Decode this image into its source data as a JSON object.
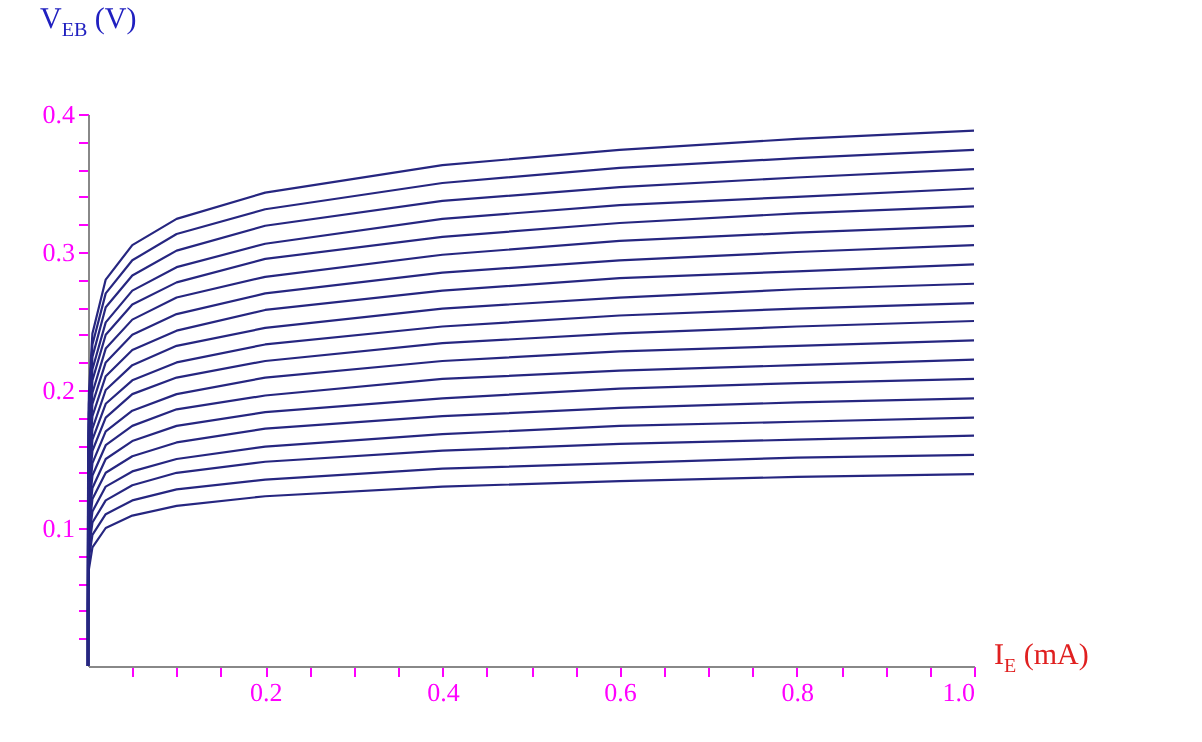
{
  "chart_data": {
    "type": "line",
    "xlabel": "I$_{E}$ (mA)",
    "ylabel": "V$_{EB}$ (V)",
    "x": [
      0,
      1e-05,
      0.0001,
      0.001,
      0.005,
      0.02,
      0.05,
      0.1,
      0.2,
      0.4,
      0.6,
      0.8,
      1.0
    ],
    "series": [
      {
        "color": "#262680",
        "values": [
          0,
          0.025,
          0.048,
          0.07,
          0.086,
          0.1,
          0.109,
          0.116,
          0.123,
          0.13,
          0.134,
          0.137,
          0.139
        ]
      },
      {
        "color": "#262680",
        "values": [
          0,
          0.028,
          0.052,
          0.078,
          0.095,
          0.11,
          0.12,
          0.128,
          0.135,
          0.143,
          0.147,
          0.151,
          0.153
        ]
      },
      {
        "color": "#262680",
        "values": [
          0,
          0.031,
          0.057,
          0.085,
          0.104,
          0.12,
          0.131,
          0.14,
          0.148,
          0.156,
          0.161,
          0.164,
          0.167
        ]
      },
      {
        "color": "#262680",
        "values": [
          0,
          0.033,
          0.062,
          0.091,
          0.112,
          0.13,
          0.141,
          0.15,
          0.159,
          0.168,
          0.174,
          0.177,
          0.18
        ]
      },
      {
        "color": "#262680",
        "values": [
          0,
          0.036,
          0.066,
          0.098,
          0.121,
          0.14,
          0.152,
          0.162,
          0.172,
          0.181,
          0.187,
          0.191,
          0.194
        ]
      },
      {
        "color": "#262680",
        "values": [
          0,
          0.038,
          0.071,
          0.105,
          0.129,
          0.15,
          0.163,
          0.174,
          0.184,
          0.194,
          0.201,
          0.205,
          0.208
        ]
      },
      {
        "color": "#262680",
        "values": [
          0,
          0.041,
          0.076,
          0.113,
          0.138,
          0.16,
          0.174,
          0.186,
          0.196,
          0.208,
          0.214,
          0.218,
          0.222
        ]
      },
      {
        "color": "#262680",
        "values": [
          0,
          0.043,
          0.081,
          0.12,
          0.147,
          0.17,
          0.185,
          0.197,
          0.209,
          0.221,
          0.228,
          0.232,
          0.236
        ]
      },
      {
        "color": "#262680",
        "values": [
          0,
          0.046,
          0.086,
          0.127,
          0.156,
          0.18,
          0.197,
          0.209,
          0.221,
          0.234,
          0.241,
          0.246,
          0.25
        ]
      },
      {
        "color": "#262680",
        "values": [
          0,
          0.048,
          0.09,
          0.133,
          0.164,
          0.19,
          0.207,
          0.22,
          0.233,
          0.246,
          0.254,
          0.259,
          0.263
        ]
      },
      {
        "color": "#262680",
        "values": [
          0,
          0.051,
          0.095,
          0.14,
          0.172,
          0.2,
          0.218,
          0.232,
          0.245,
          0.259,
          0.267,
          0.273,
          0.277
        ]
      },
      {
        "color": "#262680",
        "values": [
          0,
          0.053,
          0.1,
          0.148,
          0.181,
          0.21,
          0.229,
          0.243,
          0.258,
          0.272,
          0.281,
          0.286,
          0.291
        ]
      },
      {
        "color": "#262680",
        "values": [
          0,
          0.056,
          0.104,
          0.155,
          0.19,
          0.22,
          0.24,
          0.255,
          0.27,
          0.285,
          0.294,
          0.3,
          0.305
        ]
      },
      {
        "color": "#262680",
        "values": [
          0,
          0.058,
          0.109,
          0.162,
          0.198,
          0.23,
          0.251,
          0.267,
          0.282,
          0.298,
          0.308,
          0.314,
          0.319
        ]
      },
      {
        "color": "#262680",
        "values": [
          0,
          0.061,
          0.114,
          0.169,
          0.207,
          0.24,
          0.262,
          0.278,
          0.295,
          0.311,
          0.321,
          0.328,
          0.333
        ]
      },
      {
        "color": "#262680",
        "values": [
          0,
          0.063,
          0.118,
          0.175,
          0.215,
          0.249,
          0.272,
          0.289,
          0.306,
          0.324,
          0.334,
          0.34,
          0.346
        ]
      },
      {
        "color": "#262680",
        "values": [
          0,
          0.066,
          0.123,
          0.183,
          0.224,
          0.26,
          0.283,
          0.301,
          0.319,
          0.337,
          0.347,
          0.354,
          0.36
        ]
      },
      {
        "color": "#262680",
        "values": [
          0,
          0.068,
          0.128,
          0.19,
          0.233,
          0.27,
          0.294,
          0.313,
          0.331,
          0.35,
          0.361,
          0.368,
          0.374
        ]
      },
      {
        "color": "#262680",
        "values": [
          0,
          0.071,
          0.133,
          0.197,
          0.241,
          0.28,
          0.305,
          0.324,
          0.343,
          0.363,
          0.374,
          0.382,
          0.388
        ]
      }
    ],
    "xlim": [
      0,
      1.0
    ],
    "xticks": [
      {
        "value": 0.05,
        "label": null
      },
      {
        "value": 0.1,
        "label": null
      },
      {
        "value": 0.15,
        "label": null
      },
      {
        "value": 0.2,
        "label": "0.2"
      },
      {
        "value": 0.25,
        "label": null
      },
      {
        "value": 0.3,
        "label": null
      },
      {
        "value": 0.35,
        "label": null
      },
      {
        "value": 0.4,
        "label": "0.4"
      },
      {
        "value": 0.45,
        "label": null
      },
      {
        "value": 0.5,
        "label": null
      },
      {
        "value": 0.55,
        "label": null
      },
      {
        "value": 0.6,
        "label": "0.6"
      },
      {
        "value": 0.65,
        "label": null
      },
      {
        "value": 0.7,
        "label": null
      },
      {
        "value": 0.75,
        "label": null
      },
      {
        "value": 0.8,
        "label": "0.8"
      },
      {
        "value": 0.85,
        "label": null
      },
      {
        "value": 0.9,
        "label": null
      },
      {
        "value": 0.95,
        "label": null
      },
      {
        "value": 1.0,
        "label": "1.0"
      }
    ],
    "ylim": [
      0,
      0.4
    ],
    "yticks": [
      {
        "value": 0.02,
        "label": null
      },
      {
        "value": 0.04,
        "label": null
      },
      {
        "value": 0.06,
        "label": null
      },
      {
        "value": 0.08,
        "label": null
      },
      {
        "value": 0.1,
        "label": "0.1"
      },
      {
        "value": 0.12,
        "label": null
      },
      {
        "value": 0.14,
        "label": null
      },
      {
        "value": 0.16,
        "label": null
      },
      {
        "value": 0.18,
        "label": null
      },
      {
        "value": 0.2,
        "label": "0.2"
      },
      {
        "value": 0.22,
        "label": null
      },
      {
        "value": 0.24,
        "label": null
      },
      {
        "value": 0.26,
        "label": null
      },
      {
        "value": 0.28,
        "label": null
      },
      {
        "value": 0.3,
        "label": "0.3"
      },
      {
        "value": 0.32,
        "label": null
      },
      {
        "value": 0.34,
        "label": null
      },
      {
        "value": 0.36,
        "label": null
      },
      {
        "value": 0.38,
        "label": null
      },
      {
        "value": 0.4,
        "label": "0.4"
      }
    ],
    "grid": false,
    "legend": false,
    "marker": "none",
    "line_style": "solid"
  }
}
